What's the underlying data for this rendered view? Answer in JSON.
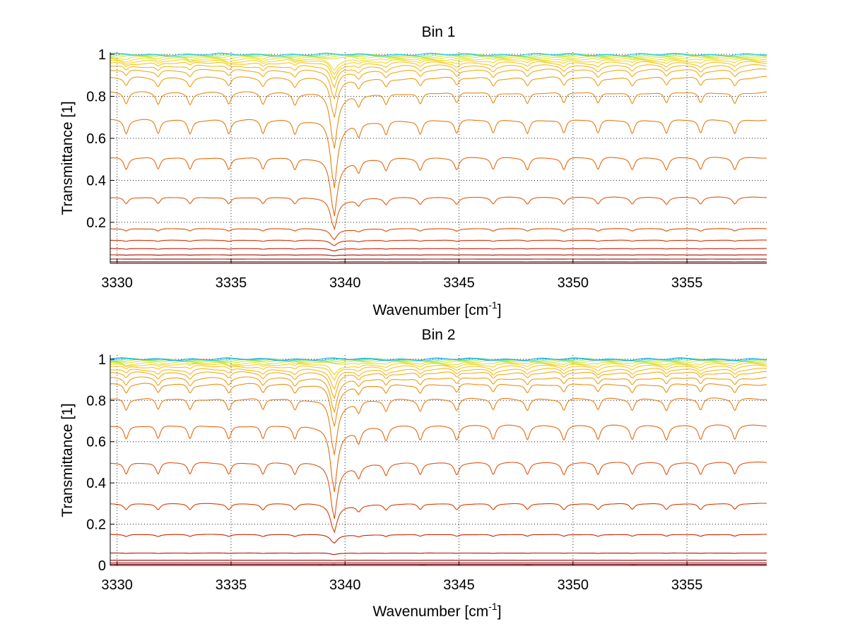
{
  "chart_data": [
    {
      "type": "line",
      "title": "Bin 1",
      "xlabel_main": "Wavenumber [cm",
      "xlabel_sup": "-1",
      "xlabel_close": "]",
      "ylabel": "Transmittance [1]",
      "xlim": [
        3329.7,
        3358.5
      ],
      "ylim": [
        0.005,
        1.01
      ],
      "xticks": [
        3330,
        3335,
        3340,
        3345,
        3350,
        3355
      ],
      "yticks": [
        0.2,
        0.4,
        0.6,
        0.8,
        1
      ],
      "ytick_labels": [
        "0.2",
        "0.4",
        "0.6",
        "0.8",
        "1"
      ],
      "grid": true,
      "baselines": [
        0.005,
        0.012,
        0.025,
        0.045,
        0.075,
        0.115,
        0.17,
        0.32,
        0.51,
        0.69,
        0.82,
        0.89,
        0.925,
        0.945,
        0.96,
        0.97,
        0.978,
        0.985,
        0.99,
        0.994,
        0.997,
        0.999
      ],
      "strong_line": 3339.5,
      "weak_lines": [
        3330.4,
        3331.8,
        3333.2,
        3334.9,
        3336.4,
        3337.8,
        3340.6,
        3341.8,
        3343.3,
        3344.9,
        3346.5,
        3348.0,
        3349.6,
        3351.1,
        3352.6,
        3354.1,
        3355.6,
        3357.1
      ],
      "colors": [
        "#7f0000",
        "#8f0000",
        "#a00000",
        "#b00a00",
        "#c41e00",
        "#d23000",
        "#dc4a00",
        "#e05a10",
        "#e26a10",
        "#e67a10",
        "#e98a10",
        "#ec9c14",
        "#efaa18",
        "#f2b81c",
        "#f4c420",
        "#f6d224",
        "#f0dc28",
        "#e2e432",
        "#c8ea4a",
        "#a2ec6e",
        "#6fe0a6",
        "#2ec6e6"
      ]
    },
    {
      "type": "line",
      "title": "Bin 2",
      "xlabel_main": "Wavenumber [cm",
      "xlabel_sup": "-1",
      "xlabel_close": "]",
      "ylabel": "Transmittance [1]",
      "xlim": [
        3329.7,
        3358.5
      ],
      "ylim": [
        0,
        1.02
      ],
      "xticks": [
        3330,
        3335,
        3340,
        3345,
        3350,
        3355
      ],
      "yticks": [
        0,
        0.2,
        0.4,
        0.6,
        0.8,
        1
      ],
      "ytick_labels": [
        "0",
        "0.2",
        "0.4",
        "0.6",
        "0.8",
        "1"
      ],
      "grid": true,
      "baselines": [
        0.005,
        0.012,
        0.025,
        0.06,
        0.15,
        0.3,
        0.5,
        0.68,
        0.81,
        0.88,
        0.91,
        0.935,
        0.95,
        0.965,
        0.975,
        0.982,
        0.988,
        0.993,
        0.996,
        0.998,
        1.0
      ],
      "strong_line": 3339.5,
      "weak_lines": [
        3330.4,
        3331.8,
        3333.2,
        3334.9,
        3336.4,
        3337.8,
        3340.6,
        3341.8,
        3343.3,
        3344.9,
        3346.5,
        3348.0,
        3349.6,
        3351.1,
        3352.6,
        3354.1,
        3355.6,
        3357.1
      ],
      "colors": [
        "#7f0000",
        "#8f0000",
        "#a00000",
        "#b41000",
        "#c82400",
        "#d83c00",
        "#e05410",
        "#e46810",
        "#e87c10",
        "#eb8e12",
        "#ee9e16",
        "#f0ac1a",
        "#f2ba1e",
        "#f4c622",
        "#f2d226",
        "#e8dc2c",
        "#d4e43c",
        "#b0ea5c",
        "#82e48e",
        "#46d0c8",
        "#1aa8f0"
      ]
    }
  ]
}
